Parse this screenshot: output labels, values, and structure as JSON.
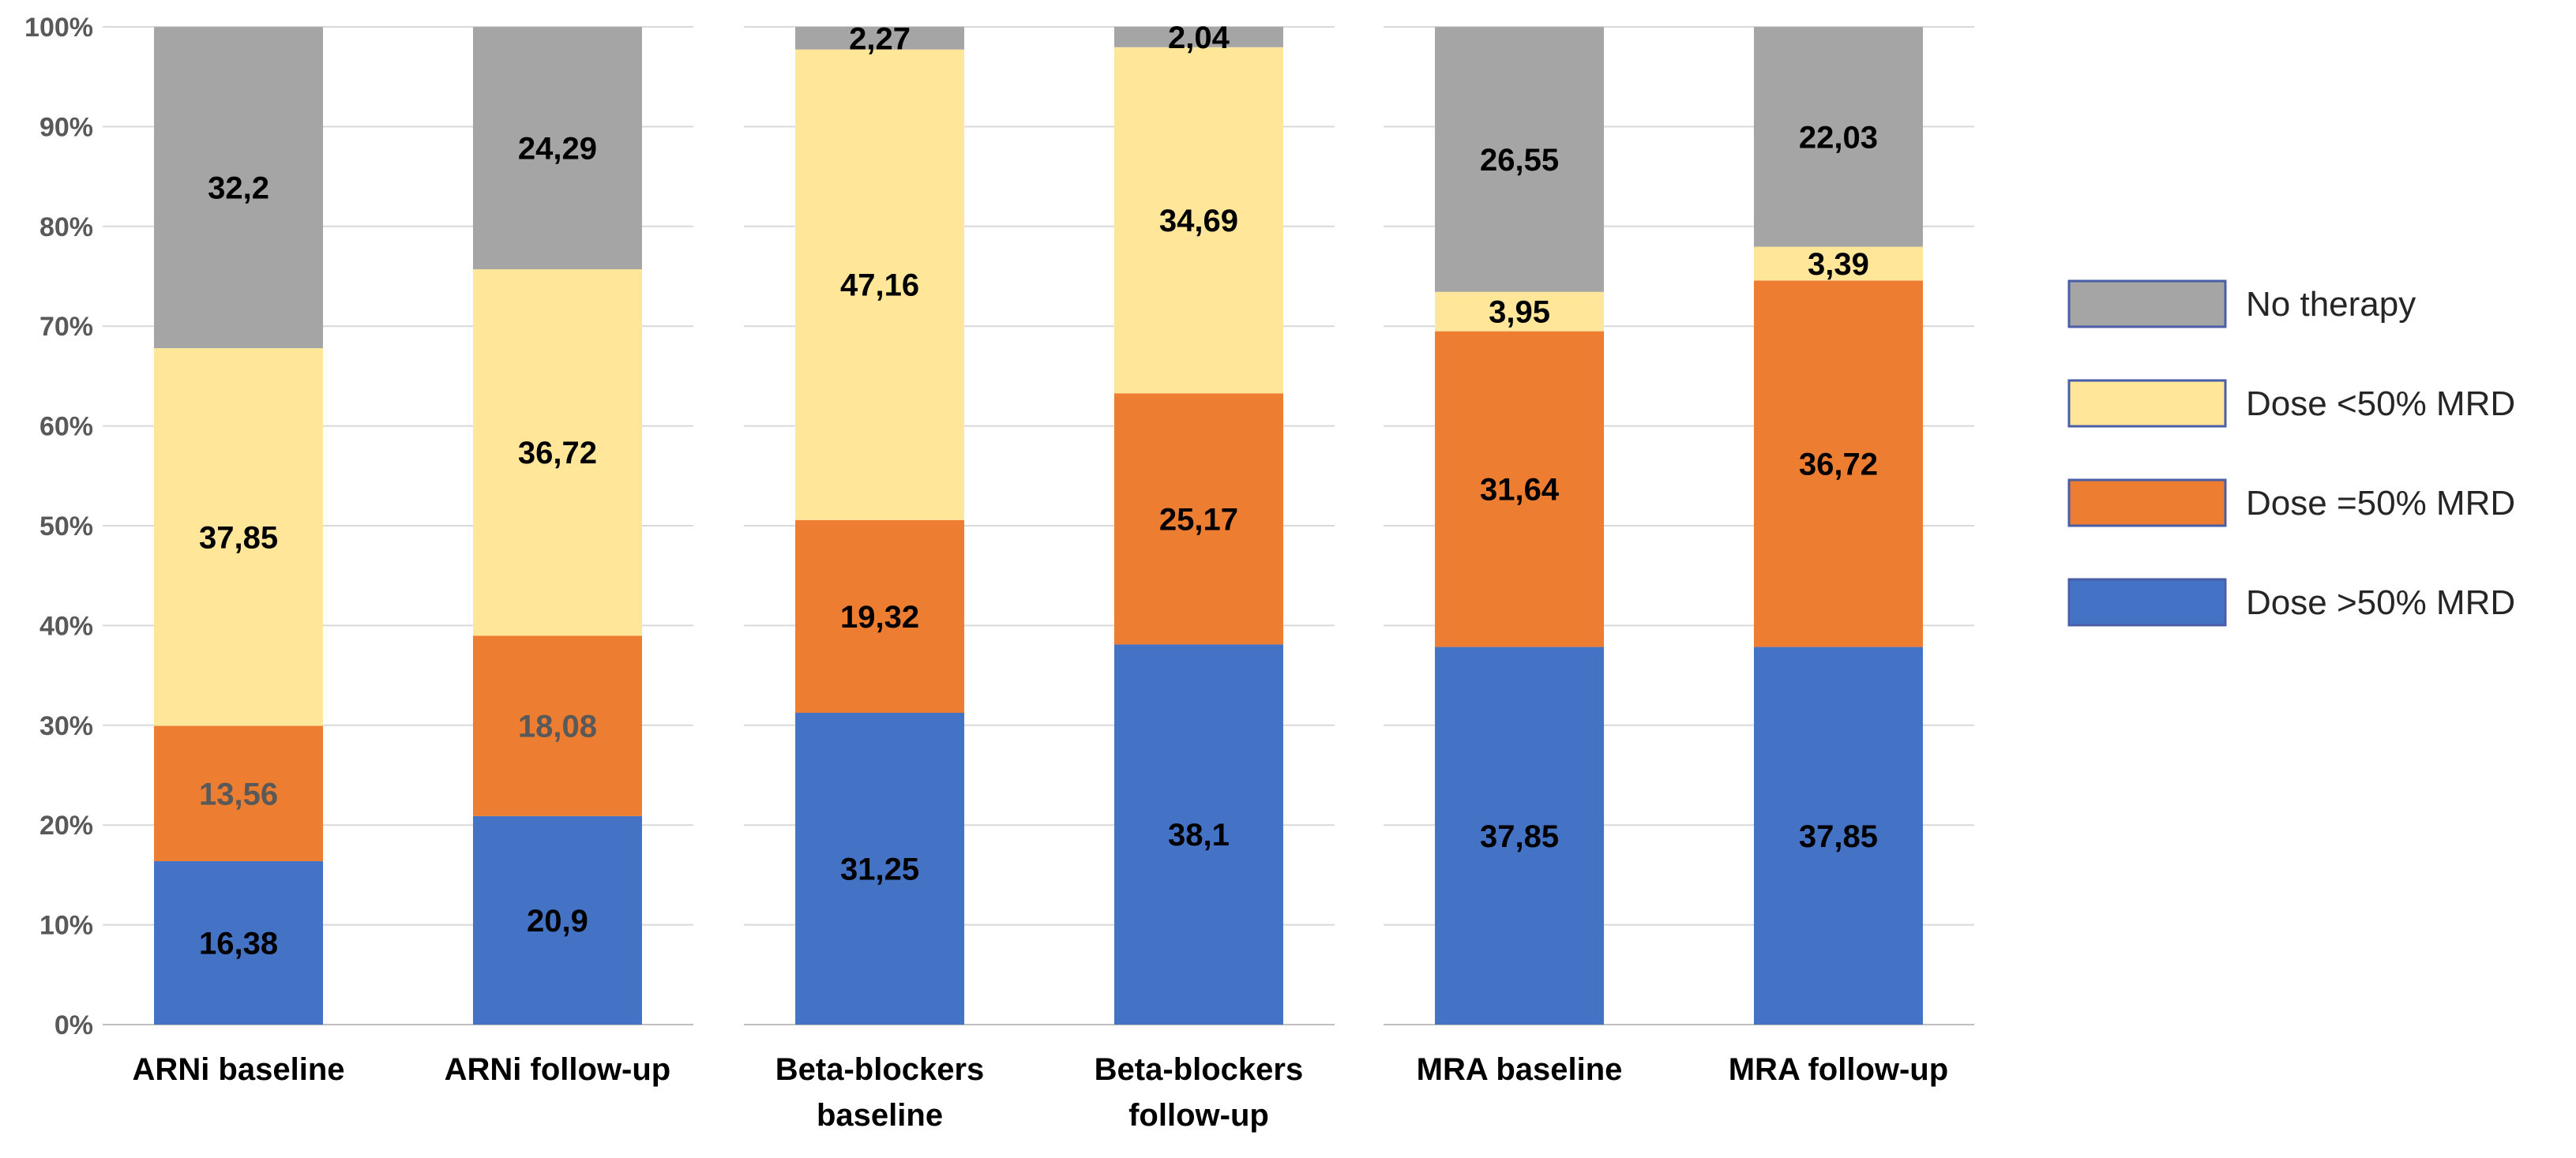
{
  "chart_data": {
    "type": "bar",
    "stacked": true,
    "percent": true,
    "title": "",
    "xlabel": "",
    "ylabel": "",
    "ylim": [
      0,
      100
    ],
    "y_ticks": [
      "0%",
      "10%",
      "20%",
      "30%",
      "40%",
      "50%",
      "60%",
      "70%",
      "80%",
      "90%",
      "100%"
    ],
    "grid": true,
    "legend_position": "right",
    "panels": [
      {
        "name": "ARNi",
        "categories": [
          [
            "ARNi baseline"
          ],
          [
            "ARNi follow-up"
          ]
        ],
        "series": [
          {
            "name": "Dose >50% MRD",
            "values": [
              16.38,
              20.9
            ],
            "labels": [
              "16,38",
              "20,9"
            ]
          },
          {
            "name": "Dose =50% MRD",
            "values": [
              13.56,
              18.08
            ],
            "labels": [
              "13,56",
              "18,08"
            ]
          },
          {
            "name": "Dose <50% MRD",
            "values": [
              37.85,
              36.72
            ],
            "labels": [
              "37,85",
              "36,72"
            ]
          },
          {
            "name": "No therapy",
            "values": [
              32.2,
              24.29
            ],
            "labels": [
              "32,2",
              "24,29"
            ]
          }
        ]
      },
      {
        "name": "Beta-blockers",
        "categories": [
          [
            "Beta-blockers",
            "baseline"
          ],
          [
            "Beta-blockers",
            "follow-up"
          ]
        ],
        "series": [
          {
            "name": "Dose >50% MRD",
            "values": [
              31.25,
              38.1
            ],
            "labels": [
              "31,25",
              "38,1"
            ]
          },
          {
            "name": "Dose =50% MRD",
            "values": [
              19.32,
              25.17
            ],
            "labels": [
              "19,32",
              "25,17"
            ]
          },
          {
            "name": "Dose <50% MRD",
            "values": [
              47.16,
              34.69
            ],
            "labels": [
              "47,16",
              "34,69"
            ]
          },
          {
            "name": "No therapy",
            "values": [
              2.27,
              2.04
            ],
            "labels": [
              "2,27",
              "2,04"
            ]
          }
        ]
      },
      {
        "name": "MRA",
        "categories": [
          [
            "MRA baseline"
          ],
          [
            "MRA follow-up"
          ]
        ],
        "series": [
          {
            "name": "Dose >50% MRD",
            "values": [
              37.85,
              37.85
            ],
            "labels": [
              "37,85",
              "37,85"
            ]
          },
          {
            "name": "Dose =50% MRD",
            "values": [
              31.64,
              36.72
            ],
            "labels": [
              "31,64",
              "36,72"
            ]
          },
          {
            "name": "Dose <50% MRD",
            "values": [
              3.95,
              3.39
            ],
            "labels": [
              "3,95",
              "3,39"
            ]
          },
          {
            "name": "No therapy",
            "values": [
              26.55,
              22.03
            ],
            "labels": [
              "26,55",
              "22,03"
            ]
          }
        ]
      }
    ],
    "colors": {
      "Dose >50% MRD": "#4472C4",
      "Dose =50% MRD": "#ED7D31",
      "Dose <50% MRD": "#FFE699",
      "No therapy": "#A5A5A5"
    },
    "label_colors": {
      "ARNi|Dose =50% MRD": "#595959"
    },
    "legend": [
      "No therapy",
      "Dose <50% MRD",
      "Dose =50% MRD",
      "Dose >50% MRD"
    ]
  }
}
